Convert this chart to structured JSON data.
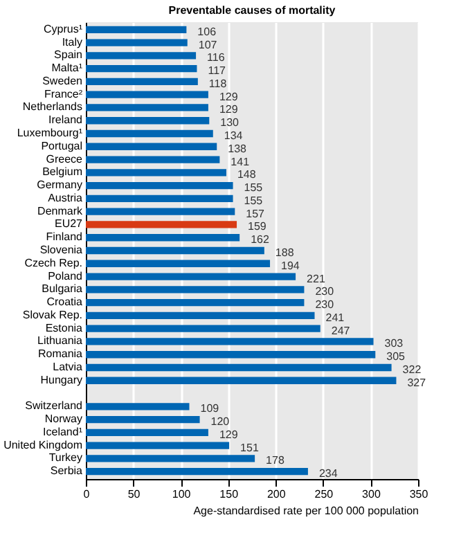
{
  "chart_data": {
    "type": "bar",
    "orientation": "horizontal",
    "title": "Preventable causes of mortality",
    "xlabel": "Age-standardised  rate per 100 000 population",
    "categories": [
      "Cyprus¹",
      "Italy",
      "Spain",
      "Malta¹",
      "Sweden",
      "France²",
      "Netherlands",
      "Ireland",
      "Luxembourg¹",
      "Portugal",
      "Greece",
      "Belgium",
      "Germany",
      "Austria",
      "Denmark",
      "EU27",
      "Finland",
      "Slovenia",
      "Czech Rep.",
      "Poland",
      "Bulgaria",
      "Croatia",
      "Slovak Rep.",
      "Estonia",
      "Lithuania",
      "Romania",
      "Latvia",
      "Hungary",
      null,
      "Switzerland",
      "Norway",
      "Iceland¹",
      "United Kingdom",
      "Turkey",
      "Serbia"
    ],
    "values": [
      106,
      107,
      116,
      117,
      118,
      129,
      129,
      130,
      134,
      138,
      141,
      148,
      155,
      155,
      157,
      159,
      162,
      188,
      194,
      221,
      230,
      230,
      241,
      247,
      303,
      305,
      322,
      327,
      null,
      109,
      120,
      129,
      151,
      178,
      234
    ],
    "colors": [
      "#0066b3",
      "#0066b3",
      "#0066b3",
      "#0066b3",
      "#0066b3",
      "#0066b3",
      "#0066b3",
      "#0066b3",
      "#0066b3",
      "#0066b3",
      "#0066b3",
      "#0066b3",
      "#0066b3",
      "#0066b3",
      "#0066b3",
      "#d83a14",
      "#0066b3",
      "#0066b3",
      "#0066b3",
      "#0066b3",
      "#0066b3",
      "#0066b3",
      "#0066b3",
      "#0066b3",
      "#0066b3",
      "#0066b3",
      "#0066b3",
      "#0066b3",
      "#0066b3",
      "#0066b3",
      "#0066b3",
      "#0066b3",
      "#0066b3",
      "#0066b3",
      "#0066b3"
    ],
    "xlim": [
      0,
      350
    ],
    "xticks": [
      0,
      50,
      100,
      150,
      200,
      250,
      300,
      350
    ],
    "grid": "x",
    "data_labels": true
  }
}
